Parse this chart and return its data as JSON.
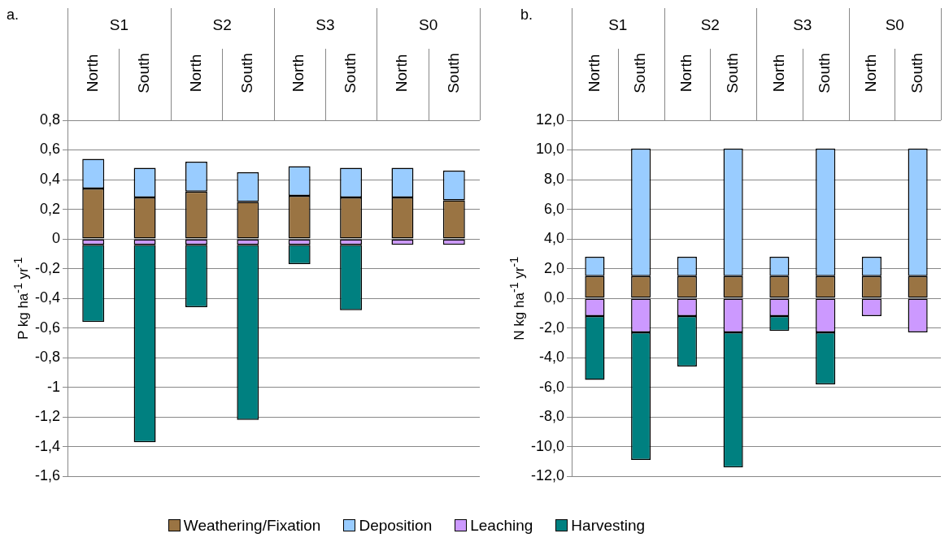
{
  "chart_data": [
    {
      "type": "bar",
      "title": "a.",
      "ylabel": "P kg ha$^{-1}$ yr$^{-1}$",
      "stacked": true,
      "grid": "y",
      "legend": "bottom",
      "categories": [
        "North",
        "South",
        "North",
        "South",
        "North",
        "South",
        "North",
        "South"
      ],
      "annotations": [
        "S1",
        "S2",
        "S3",
        "S0"
      ],
      "ylim": [
        -1.6,
        0.8
      ],
      "yticks": [
        {
          "value": 0.8,
          "label": "0,8"
        },
        {
          "value": 0.6,
          "label": "0,6"
        },
        {
          "value": 0.4,
          "label": "0,4"
        },
        {
          "value": 0.2,
          "label": "0,2"
        },
        0,
        {
          "value": -0.2,
          "label": "-0,2"
        },
        {
          "value": -0.4,
          "label": "-0,4"
        },
        {
          "value": -0.6,
          "label": "-0,6"
        },
        {
          "value": -0.8,
          "label": "-0,8"
        },
        -1,
        {
          "value": -1.2,
          "label": "-1,2"
        },
        {
          "value": -1.4,
          "label": "-1,4"
        },
        {
          "value": -1.6,
          "label": "-1,6"
        }
      ],
      "series": [
        {
          "name": "Weathering/Fixation",
          "color": "#9a7443",
          "values": [
            0.34,
            0.28,
            0.32,
            0.25,
            0.29,
            0.28,
            0.28,
            0.26
          ]
        },
        {
          "name": "Deposition",
          "color": "#99ccff",
          "values": [
            0.2,
            0.2,
            0.2,
            0.2,
            0.2,
            0.2,
            0.2,
            0.2
          ]
        },
        {
          "name": "Leaching",
          "color": "#cc99ff",
          "values": [
            -0.04,
            -0.04,
            -0.04,
            -0.04,
            -0.04,
            -0.04,
            -0.04,
            -0.04
          ]
        },
        {
          "name": "Harvesting",
          "color": "#008080",
          "values": [
            -0.52,
            -1.33,
            -0.42,
            -1.18,
            -0.13,
            -0.44,
            null,
            null
          ]
        }
      ]
    },
    {
      "type": "bar",
      "title": "b.",
      "ylabel": "N kg ha$^{-1}$ yr$^{-1}$",
      "stacked": true,
      "grid": "y",
      "categories": [
        "North",
        "South",
        "North",
        "South",
        "North",
        "South",
        "North",
        "South"
      ],
      "annotations": [
        "S1",
        "S2",
        "S3",
        "S0"
      ],
      "ylim": [
        -12,
        12
      ],
      "yticks": [
        {
          "value": 12,
          "label": "12,0"
        },
        {
          "value": 10,
          "label": "10,0"
        },
        {
          "value": 8,
          "label": "8,0"
        },
        {
          "value": 6,
          "label": "6,0"
        },
        {
          "value": 4,
          "label": "4,0"
        },
        {
          "value": 2,
          "label": "2,0"
        },
        {
          "value": 0,
          "label": "0,0"
        },
        {
          "value": -2,
          "label": "-2,0"
        },
        {
          "value": -4,
          "label": "-4,0"
        },
        {
          "value": -6,
          "label": "-6,0"
        },
        {
          "value": -8,
          "label": "-8,0"
        },
        {
          "value": -10,
          "label": "-10,0"
        },
        {
          "value": -12,
          "label": "-12,0"
        }
      ],
      "series": [
        {
          "color": "#9a7443",
          "values": [
            1.5,
            1.5,
            1.5,
            1.5,
            1.5,
            1.5,
            1.5,
            1.5
          ]
        },
        {
          "color": "#99ccff",
          "values": [
            1.3,
            8.6,
            1.3,
            8.6,
            1.3,
            8.6,
            1.3,
            8.6
          ]
        },
        {
          "color": "#cc99ff",
          "values": [
            -1.2,
            -2.3,
            -1.2,
            -2.3,
            -1.2,
            -2.3,
            -1.2,
            -2.3
          ]
        },
        {
          "color": "#008080",
          "values": [
            -4.3,
            -8.6,
            -3.4,
            -9.1,
            -1.0,
            -3.5,
            null,
            null
          ]
        }
      ]
    }
  ]
}
